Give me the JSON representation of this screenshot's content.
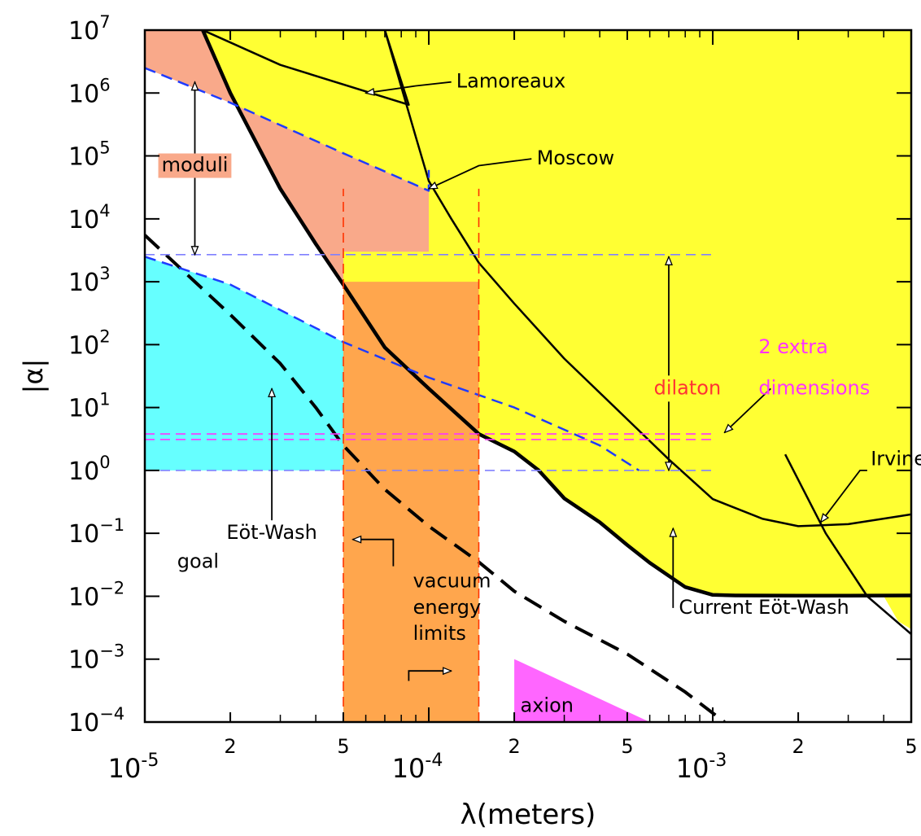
{
  "chart_data": {
    "type": "line",
    "xlabel": "λ(meters)",
    "ylabel": "|α|",
    "x_scale": "log",
    "y_scale": "log",
    "xlim": [
      1e-05,
      0.005
    ],
    "ylim": [
      0.0001,
      10000000
    ],
    "x_ticks": [
      {
        "value": 1e-05,
        "base": "10",
        "exp": "-5"
      },
      {
        "value": 2e-05,
        "label": "2"
      },
      {
        "value": 5e-05,
        "label": "5"
      },
      {
        "value": 0.0001,
        "base": "10",
        "exp": "-4"
      },
      {
        "value": 0.0002,
        "label": "2"
      },
      {
        "value": 0.0005,
        "label": "5"
      },
      {
        "value": 0.001,
        "base": "10",
        "exp": "-3"
      },
      {
        "value": 0.002,
        "label": "2"
      },
      {
        "value": 0.005,
        "label": "5"
      }
    ],
    "y_ticks": [
      {
        "value": 10000000,
        "base": "10",
        "exp": "7"
      },
      {
        "value": 1000000,
        "base": "10",
        "exp": "6"
      },
      {
        "value": 100000,
        "base": "10",
        "exp": "5"
      },
      {
        "value": 10000,
        "base": "10",
        "exp": "4"
      },
      {
        "value": 1000,
        "base": "10",
        "exp": "3"
      },
      {
        "value": 100,
        "base": "10",
        "exp": "2"
      },
      {
        "value": 10,
        "base": "10",
        "exp": "1"
      },
      {
        "value": 1,
        "base": "10",
        "exp": "0"
      },
      {
        "value": 0.1,
        "base": "10",
        "exp": "−1"
      },
      {
        "value": 0.01,
        "base": "10",
        "exp": "−2"
      },
      {
        "value": 0.001,
        "base": "10",
        "exp": "−3"
      },
      {
        "value": 0.0001,
        "base": "10",
        "exp": "−4"
      }
    ],
    "regions": [
      {
        "id": "excluded",
        "color": "#ffff33",
        "points": [
          [
            1.6e-05,
            10000000
          ],
          [
            0.005,
            10000000
          ],
          [
            0.005,
            0.003
          ],
          [
            0.0045,
            0.004
          ],
          [
            0.004,
            0.01
          ],
          [
            0.003,
            0.0102
          ],
          [
            0.002,
            0.0102
          ],
          [
            0.0012,
            0.0103
          ],
          [
            0.001,
            0.0105
          ],
          [
            0.0008,
            0.014
          ],
          [
            0.0006,
            0.034
          ],
          [
            0.0005,
            0.065
          ],
          [
            0.0004,
            0.15
          ],
          [
            0.0003,
            0.36
          ],
          [
            0.000244,
            1
          ],
          [
            0.0002,
            2
          ],
          [
            0.00015,
            3.8
          ],
          [
            0.0001,
            20
          ],
          [
            7e-05,
            90
          ],
          [
            5e-05,
            900
          ],
          [
            4e-05,
            4000
          ],
          [
            3e-05,
            30000
          ],
          [
            2e-05,
            1000000
          ],
          [
            1.6e-05,
            10000000
          ]
        ]
      },
      {
        "id": "moduli",
        "color": "#f9a98a",
        "points": [
          [
            1e-05,
            2500000
          ],
          [
            2e-05,
            700000
          ],
          [
            5e-05,
            110000
          ],
          [
            0.0001,
            28000
          ],
          [
            0.0001,
            3000
          ],
          [
            5e-05,
            3000
          ],
          [
            5e-05,
            900
          ],
          [
            4e-05,
            4000
          ],
          [
            3e-05,
            30000
          ],
          [
            2e-05,
            1000000
          ],
          [
            1.6e-05,
            10000000
          ],
          [
            1e-05,
            10000000
          ]
        ]
      },
      {
        "id": "eotwash-goal",
        "color": "#66ffff",
        "points": [
          [
            1e-05,
            2500
          ],
          [
            2e-05,
            900
          ],
          [
            5e-05,
            110
          ],
          [
            5e-05,
            1
          ],
          [
            1e-05,
            1
          ]
        ]
      },
      {
        "id": "vacuum-energy",
        "color": "#ffa64d",
        "points": [
          [
            5e-05,
            0.0001
          ],
          [
            0.00015,
            0.0001
          ],
          [
            0.00015,
            1000
          ],
          [
            5e-05,
            1000
          ]
        ]
      },
      {
        "id": "axion",
        "color": "#ff66ff",
        "points": [
          [
            0.0002,
            0.0001
          ],
          [
            0.0002,
            0.001
          ],
          [
            0.0006,
            0.0001
          ]
        ]
      }
    ],
    "series": [
      {
        "id": "current-eotwash",
        "style": "solid",
        "color": "#000000",
        "width": 4.5,
        "points": [
          [
            1.6e-05,
            10000000
          ],
          [
            2e-05,
            1000000
          ],
          [
            3e-05,
            30000
          ],
          [
            4e-05,
            4000
          ],
          [
            5e-05,
            900
          ],
          [
            7e-05,
            90
          ],
          [
            0.0001,
            20
          ],
          [
            0.00015,
            3.8
          ],
          [
            0.0002,
            2
          ],
          [
            0.000244,
            1
          ],
          [
            0.0003,
            0.36
          ],
          [
            0.0004,
            0.15
          ],
          [
            0.0005,
            0.065
          ],
          [
            0.0006,
            0.034
          ],
          [
            0.0008,
            0.014
          ],
          [
            0.001,
            0.0105
          ],
          [
            0.0012,
            0.0103
          ],
          [
            0.002,
            0.0102
          ],
          [
            0.003,
            0.0102
          ],
          [
            0.005,
            0.0103
          ]
        ]
      },
      {
        "id": "moscow",
        "style": "solid",
        "color": "#000000",
        "width": 2.5,
        "points": [
          [
            7e-05,
            10000000
          ],
          [
            9e-05,
            200000
          ],
          [
            0.0001,
            40000
          ],
          [
            0.00012,
            10000
          ],
          [
            0.00015,
            2000
          ],
          [
            0.0002,
            450
          ],
          [
            0.0003,
            60
          ],
          [
            0.0005,
            6.5
          ],
          [
            0.0007,
            1.5
          ],
          [
            0.001,
            0.35
          ],
          [
            0.0015,
            0.17
          ],
          [
            0.002,
            0.13
          ],
          [
            0.003,
            0.14
          ],
          [
            0.005,
            0.2
          ]
        ]
      },
      {
        "id": "lamoreaux",
        "style": "solid",
        "color": "#000000",
        "width": 2.5,
        "points": [
          [
            1.6e-05,
            10000000
          ],
          [
            3e-05,
            2800000
          ],
          [
            8.5e-05,
            650000
          ],
          [
            7e-05,
            10000000
          ]
        ]
      },
      {
        "id": "irvine",
        "style": "solid",
        "color": "#000000",
        "width": 2.5,
        "points": [
          [
            0.0018,
            1.8
          ],
          [
            0.0025,
            0.1
          ],
          [
            0.0035,
            0.01
          ],
          [
            0.005,
            0.0025
          ]
        ]
      },
      {
        "id": "eotwash-goal-curve",
        "style": "dashed-thick",
        "color": "#000000",
        "width": 4,
        "points": [
          [
            1e-05,
            5500
          ],
          [
            1.5e-05,
            1000
          ],
          [
            2e-05,
            300
          ],
          [
            3e-05,
            50
          ],
          [
            4e-05,
            10
          ],
          [
            5e-05,
            2.5
          ],
          [
            7e-05,
            0.5
          ],
          [
            0.0001,
            0.13
          ],
          [
            0.00015,
            0.035
          ],
          [
            0.0002,
            0.012
          ],
          [
            0.0003,
            0.004
          ],
          [
            0.0005,
            0.0012
          ],
          [
            0.0008,
            0.0003
          ],
          [
            0.0011,
            0.0001
          ]
        ]
      },
      {
        "id": "moduli-upper",
        "style": "dashed",
        "color": "#1f3bff",
        "width": 2.5,
        "points": [
          [
            1e-05,
            2500000
          ],
          [
            2e-05,
            700000
          ],
          [
            5e-05,
            110000
          ],
          [
            0.0001,
            28000
          ],
          [
            0.0001,
            60000
          ]
        ]
      },
      {
        "id": "moduli-lower",
        "style": "dashed",
        "color": "#1f3bff",
        "width": 2.5,
        "points": [
          [
            1e-05,
            2500
          ],
          [
            2e-05,
            900
          ],
          [
            5e-05,
            110
          ],
          [
            0.0001,
            30
          ],
          [
            0.0002,
            10
          ],
          [
            0.0004,
            2.5
          ],
          [
            0.00055,
            1
          ]
        ]
      },
      {
        "id": "dilaton-top",
        "style": "dashed-thin",
        "color": "#8080ff",
        "width": 1.6,
        "points": [
          [
            1e-05,
            2700
          ],
          [
            0.001,
            2700
          ]
        ]
      },
      {
        "id": "dilaton-bottom",
        "style": "dashed-thin",
        "color": "#8080ff",
        "width": 1.6,
        "points": [
          [
            1e-05,
            1
          ],
          [
            0.001,
            1
          ]
        ]
      },
      {
        "id": "extra-dim-upper",
        "style": "dashed-thin",
        "color": "#ff33ff",
        "width": 1.6,
        "points": [
          [
            1e-05,
            3.8
          ],
          [
            0.001,
            3.8
          ]
        ]
      },
      {
        "id": "extra-dim-lower",
        "style": "dashed-thin",
        "color": "#ff33ff",
        "width": 1.6,
        "points": [
          [
            1e-05,
            3.1
          ],
          [
            0.001,
            3.1
          ]
        ]
      },
      {
        "id": "vacuum-left",
        "style": "dashed-thin",
        "color": "#ff3300",
        "width": 1.6,
        "points": [
          [
            5e-05,
            0.0001
          ],
          [
            5e-05,
            30000
          ]
        ]
      },
      {
        "id": "vacuum-right",
        "style": "dashed-thin",
        "color": "#ff3300",
        "width": 1.6,
        "points": [
          [
            0.00015,
            0.0001
          ],
          [
            0.00015,
            30000
          ]
        ]
      }
    ],
    "arrows": [
      {
        "id": "lamoreaux-arrow",
        "points": [
          [
            0.00012,
            1500000
          ],
          [
            9e-05,
            1300000
          ],
          [
            6e-05,
            1000000
          ]
        ]
      },
      {
        "id": "moscow-arrow",
        "points": [
          [
            0.00023,
            90000
          ],
          [
            0.00015,
            70000
          ],
          [
            0.0001,
            30000
          ]
        ]
      },
      {
        "id": "moduli-up-arrow",
        "points": [
          [
            1.5e-05,
            70000
          ],
          [
            1.5e-05,
            1500000
          ]
        ]
      },
      {
        "id": "moduli-down-arrow",
        "points": [
          [
            1.5e-05,
            70000
          ],
          [
            1.5e-05,
            2700
          ]
        ]
      },
      {
        "id": "dilaton-up-arrow",
        "points": [
          [
            0.0007,
            20
          ],
          [
            0.0007,
            2500
          ]
        ]
      },
      {
        "id": "dilaton-down-arrow",
        "points": [
          [
            0.0007,
            20
          ],
          [
            0.0007,
            1
          ]
        ]
      },
      {
        "id": "extra-dim-arrow",
        "points": [
          [
            0.0016,
            20
          ],
          [
            0.0011,
            4
          ]
        ]
      },
      {
        "id": "eotwash-goal-arrow",
        "points": [
          [
            2.8e-05,
            0.15
          ],
          [
            2.8e-05,
            20
          ]
        ]
      },
      {
        "id": "vacuum-left-arrow",
        "points": [
          [
            7.5e-05,
            0.03
          ],
          [
            7.5e-05,
            0.08
          ],
          [
            5.4e-05,
            0.08
          ]
        ]
      },
      {
        "id": "vacuum-right-arrow",
        "points": [
          [
            8.5e-05,
            0.00045
          ],
          [
            8.5e-05,
            0.00065
          ],
          [
            0.00012,
            0.00065
          ]
        ]
      },
      {
        "id": "current-eotwash-arrow",
        "points": [
          [
            0.000725,
            0.0065
          ],
          [
            0.000725,
            0.12
          ]
        ]
      },
      {
        "id": "irvine-arrow",
        "points": [
          [
            0.0035,
            1
          ],
          [
            0.0033,
            1
          ],
          [
            0.0024,
            0.15
          ]
        ]
      }
    ],
    "annotations": [
      {
        "id": "lamoreaux-label",
        "text": "Lamoreaux",
        "color": "#000000",
        "x": 0.000125,
        "y": 1500000
      },
      {
        "id": "moscow-label",
        "text": "Moscow",
        "color": "#000000",
        "x": 0.00024,
        "y": 90000
      },
      {
        "id": "moduli-label",
        "text": "moduli",
        "color": "#000000",
        "x": 1.5e-05,
        "y": 70000
      },
      {
        "id": "dilaton-label",
        "text": "dilaton",
        "color": "#ff3333",
        "x": 0.00062,
        "y": 20
      },
      {
        "id": "extra-dim-label-1",
        "text": "2 extra",
        "color": "#ff33ff",
        "x": 0.00145,
        "y": 90
      },
      {
        "id": "extra-dim-label-2",
        "text": "dimensions",
        "color": "#ff33ff",
        "x": 0.00145,
        "y": 20
      },
      {
        "id": "irvine-label",
        "text": "Irvine",
        "color": "#000000",
        "x": 0.0036,
        "y": 1.5
      },
      {
        "id": "eotwash-goal-label-1",
        "text": "Eöt-Wash",
        "color": "#000000",
        "x": 2.8e-05,
        "y": 0.1
      },
      {
        "id": "eotwash-goal-label-2",
        "text": "goal",
        "color": "#000000",
        "x": 1.3e-05,
        "y": 0.035
      },
      {
        "id": "vacuum-label-1",
        "text": "vacuum",
        "color": "#000000",
        "x": 8.8e-05,
        "y": 0.017
      },
      {
        "id": "vacuum-label-2",
        "text": "energy",
        "color": "#000000",
        "x": 8.8e-05,
        "y": 0.0065
      },
      {
        "id": "vacuum-label-3",
        "text": "limits",
        "color": "#000000",
        "x": 8.8e-05,
        "y": 0.0025
      },
      {
        "id": "current-eotwash-label",
        "text": "Current  Eöt-Wash",
        "color": "#000000",
        "x": 0.00076,
        "y": 0.0065
      },
      {
        "id": "axion-label",
        "text": "axion",
        "color": "#000000",
        "x": 0.00021,
        "y": 0.00018
      }
    ]
  }
}
